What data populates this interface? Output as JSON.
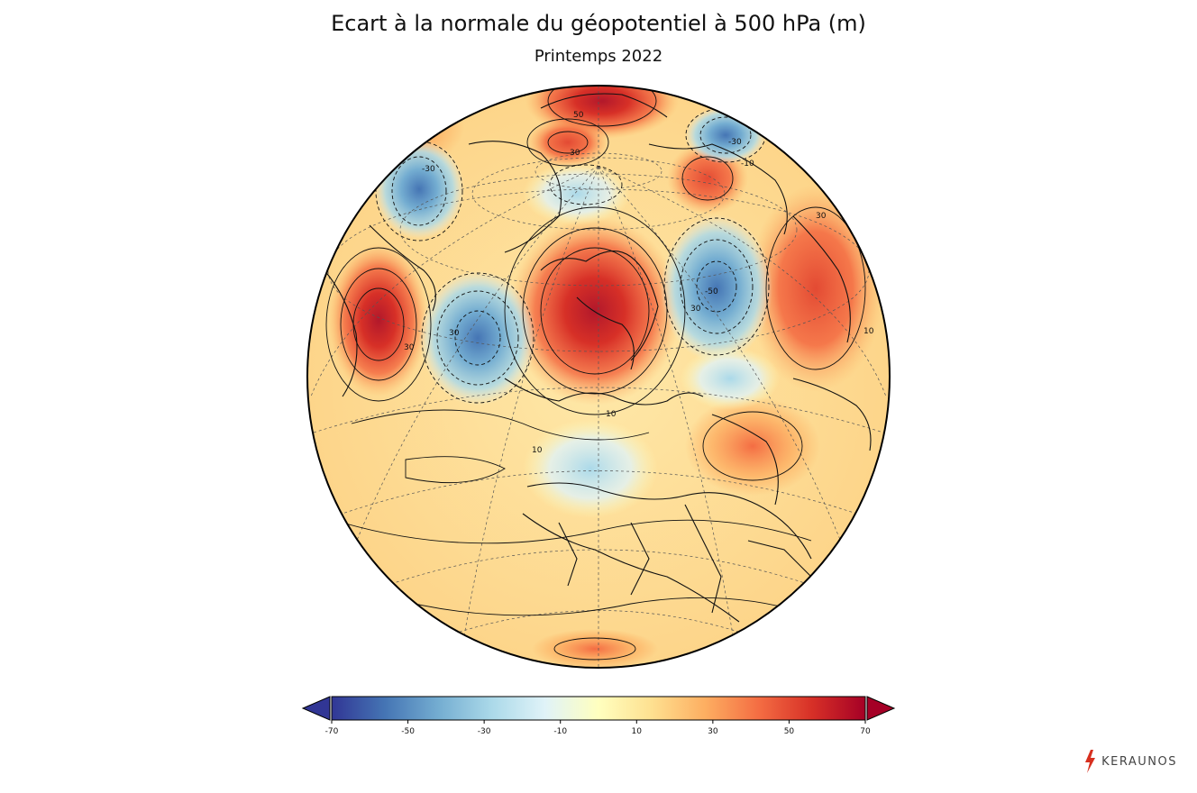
{
  "title": "Ecart à la normale du géopotentiel à 500 hPa (m)",
  "subtitle": "Printemps 2022",
  "colorbar": {
    "ticks": [
      "-70",
      "-50",
      "-30",
      "-10",
      "10",
      "30",
      "50",
      "70"
    ],
    "min": -70,
    "max": 70,
    "colors": [
      "#313695",
      "#4575b4",
      "#74add1",
      "#abd9e9",
      "#e0f3f8",
      "#ffffbf",
      "#fee090",
      "#fdae61",
      "#f46d43",
      "#d73027",
      "#a50026"
    ]
  },
  "map_labels": [
    "30",
    "-30",
    "30",
    "-50",
    "30",
    "10",
    "30",
    "30",
    "-30",
    "10",
    "10",
    "-10",
    "50"
  ],
  "brand": {
    "name": "KERAUNOS",
    "color": "#d7301f"
  }
}
